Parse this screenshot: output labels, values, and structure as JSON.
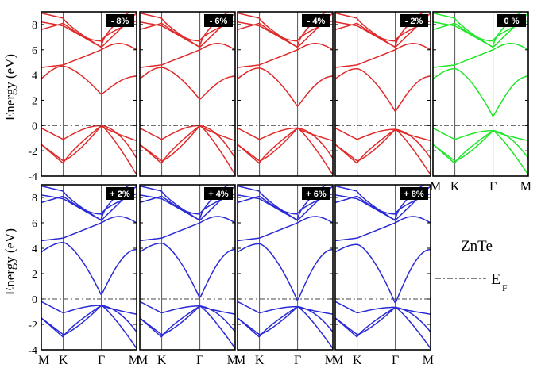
{
  "figure": {
    "material": "ZnTe",
    "ylabel": "Energy (eV)",
    "fermi_legend": {
      "symbol": "E",
      "subscript": "F"
    }
  },
  "chart_data": {
    "type": "line",
    "ylabel": "Energy (eV)",
    "ylim": [
      -4,
      9
    ],
    "yticks": [
      -4,
      -2,
      0,
      2,
      4,
      6,
      8
    ],
    "kpath": [
      "M",
      "K",
      "Γ",
      "M"
    ],
    "fermi_level": 0,
    "legend": {
      "label": "E",
      "label_subscript": "F",
      "style": "dash-dot",
      "placement": "right"
    },
    "colors": {
      "compressive": "#e02a2a",
      "unstrained": "#22e62a",
      "tensile": "#2a2ad6"
    },
    "panels": [
      {
        "strain": "- 8%",
        "row": 0,
        "gap": 2.45,
        "vb_gamma": 0.0,
        "cbm_k": 4.7
      },
      {
        "strain": "- 6%",
        "row": 0,
        "gap": 2.05,
        "vb_gamma": 0.0,
        "cbm_k": 4.6
      },
      {
        "strain": "- 4%",
        "row": 0,
        "gap": 1.7,
        "vb_gamma": -0.2,
        "cbm_k": 4.55
      },
      {
        "strain": "- 2%",
        "row": 0,
        "gap": 1.4,
        "vb_gamma": -0.3,
        "cbm_k": 4.5
      },
      {
        "strain": "0 %",
        "row": 0,
        "gap": 1.1,
        "vb_gamma": -0.4,
        "cbm_k": 4.5
      },
      {
        "strain": "+ 2%",
        "row": 1,
        "gap": 0.8,
        "vb_gamma": -0.5,
        "cbm_k": 4.45
      },
      {
        "strain": "+ 4%",
        "row": 1,
        "gap": 0.6,
        "vb_gamma": -0.55,
        "cbm_k": 4.4
      },
      {
        "strain": "+ 6%",
        "row": 1,
        "gap": 0.45,
        "vb_gamma": -0.6,
        "cbm_k": 4.35
      },
      {
        "strain": "+ 8%",
        "row": 1,
        "gap": 0.3,
        "vb_gamma": -0.65,
        "cbm_k": 4.3
      }
    ]
  }
}
